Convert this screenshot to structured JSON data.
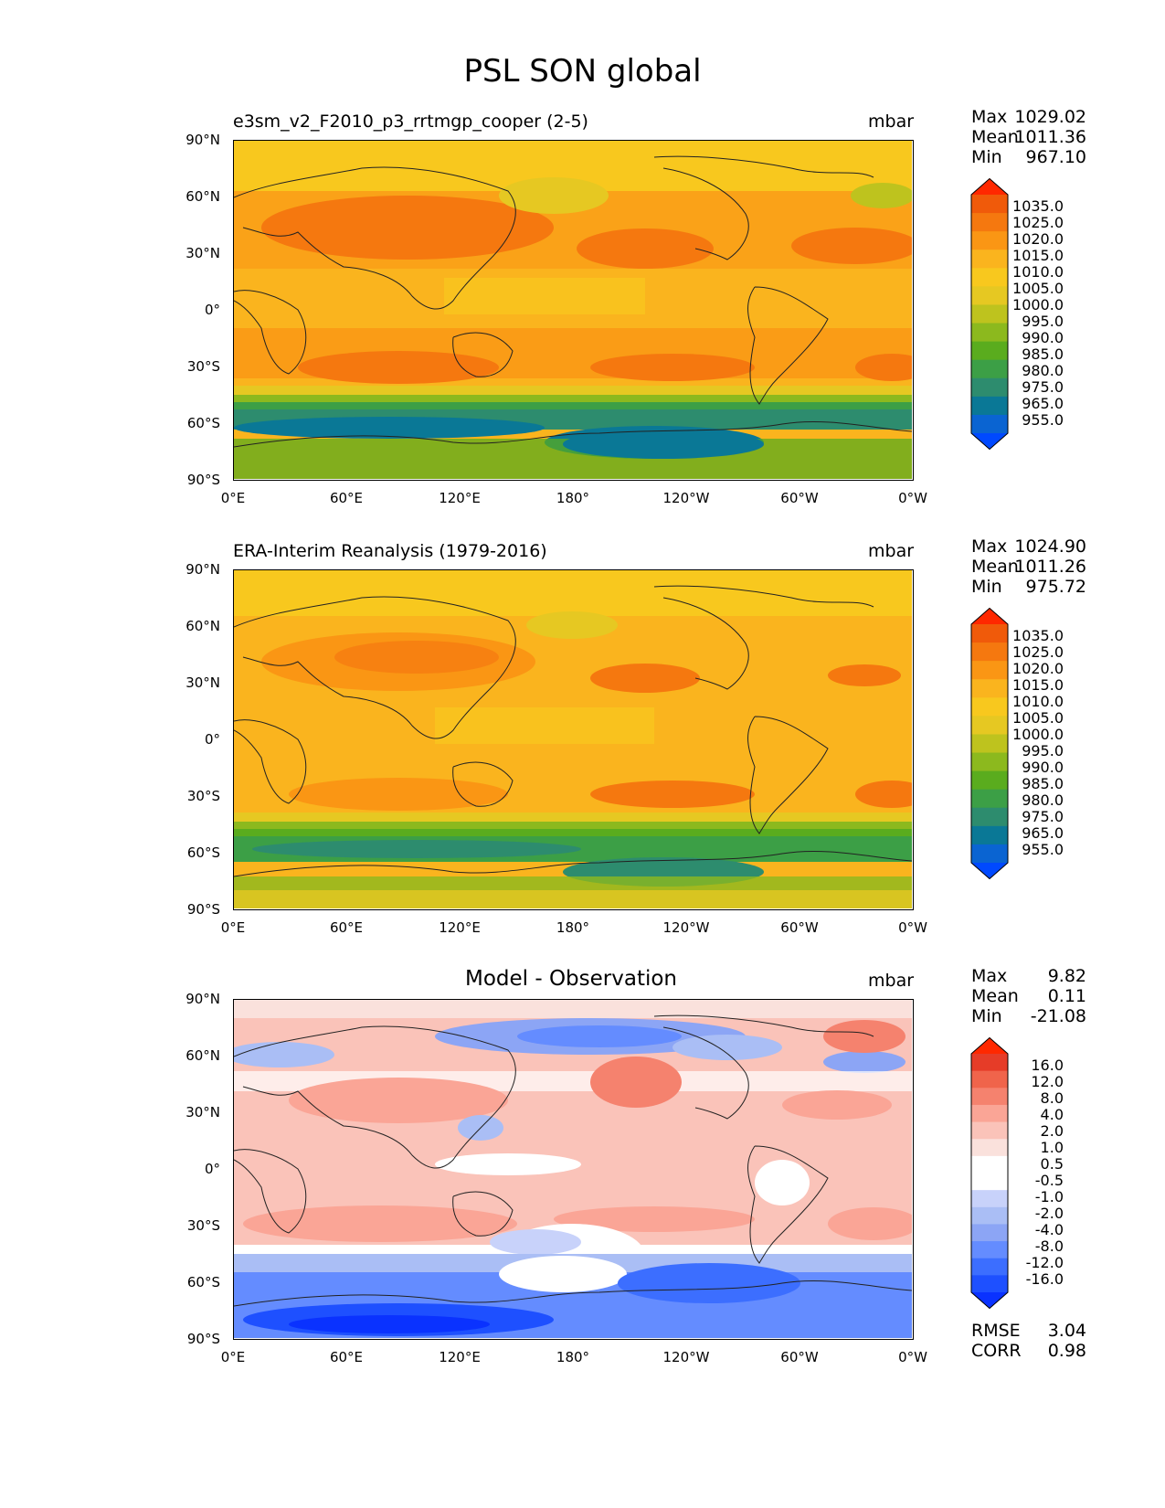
{
  "figure": {
    "title": "PSL SON global"
  },
  "colors": {
    "abs_levels": [
      "#0049ff",
      "#0a64d2",
      "#0a7896",
      "#2d8c6e",
      "#3c9f46",
      "#5aac1e",
      "#8cb91e",
      "#bec31e",
      "#e6c822",
      "#f8c81e",
      "#fab41e",
      "#fa9614",
      "#f5780f",
      "#f05a0a",
      "#ff2800"
    ],
    "diff_levels": [
      "#0a32ff",
      "#1e50ff",
      "#3c6eff",
      "#648cff",
      "#8ca5f5",
      "#aabef5",
      "#c8d2fa",
      "#ffffff",
      "#ffffff",
      "#fae1dc",
      "#fac3b9",
      "#faa596",
      "#f5826e",
      "#f0644b",
      "#e63c28",
      "#ff2800"
    ],
    "background": "#ffffff"
  },
  "chart_data": [
    {
      "type": "heatmap",
      "title": "e3sm_v2_F2010_p3_rrtmgp_cooper (2-5)",
      "units": "mbar",
      "stats": {
        "max_label": "Max",
        "max": "1029.02",
        "mean_label": "Mean",
        "mean": "1011.36",
        "min_label": "Min",
        "min": "967.10"
      },
      "colorbar_levels": [
        "1035.0",
        "1025.0",
        "1020.0",
        "1015.0",
        "1010.0",
        "1005.0",
        "1000.0",
        "995.0",
        "990.0",
        "985.0",
        "980.0",
        "975.0",
        "965.0",
        "955.0"
      ],
      "x_ticks": [
        "0°E",
        "60°E",
        "120°E",
        "180°",
        "120°W",
        "60°W",
        "0°W"
      ],
      "y_ticks": [
        "90°N",
        "60°N",
        "30°N",
        "0°",
        "30°S",
        "60°S",
        "90°S"
      ],
      "xlim": [
        0,
        360
      ],
      "ylim": [
        -90,
        90
      ]
    },
    {
      "type": "heatmap",
      "title": "ERA-Interim Reanalysis (1979-2016)",
      "units": "mbar",
      "stats": {
        "max_label": "Max",
        "max": "1024.90",
        "mean_label": "Mean",
        "mean": "1011.26",
        "min_label": "Min",
        "min": "975.72"
      },
      "colorbar_levels": [
        "1035.0",
        "1025.0",
        "1020.0",
        "1015.0",
        "1010.0",
        "1005.0",
        "1000.0",
        "995.0",
        "990.0",
        "985.0",
        "980.0",
        "975.0",
        "965.0",
        "955.0"
      ],
      "x_ticks": [
        "0°E",
        "60°E",
        "120°E",
        "180°",
        "120°W",
        "60°W",
        "0°W"
      ],
      "y_ticks": [
        "90°N",
        "60°N",
        "30°N",
        "0°",
        "30°S",
        "60°S",
        "90°S"
      ],
      "xlim": [
        0,
        360
      ],
      "ylim": [
        -90,
        90
      ]
    },
    {
      "type": "heatmap",
      "title": "Model - Observation",
      "units": "mbar",
      "stats": {
        "max_label": "Max",
        "max": "9.82",
        "mean_label": "Mean",
        "mean": "0.11",
        "min_label": "Min",
        "min": "-21.08"
      },
      "colorbar_levels": [
        "16.0",
        "12.0",
        "8.0",
        "4.0",
        "2.0",
        "1.0",
        "0.5",
        "-0.5",
        "-1.0",
        "-2.0",
        "-4.0",
        "-8.0",
        "-12.0",
        "-16.0"
      ],
      "x_ticks": [
        "0°E",
        "60°E",
        "120°E",
        "180°",
        "120°W",
        "60°W",
        "0°W"
      ],
      "y_ticks": [
        "90°N",
        "60°N",
        "30°N",
        "0°",
        "30°S",
        "60°S",
        "90°S"
      ],
      "xlim": [
        0,
        360
      ],
      "ylim": [
        -90,
        90
      ],
      "metrics": {
        "rmse_label": "RMSE",
        "rmse": "3.04",
        "corr_label": "CORR",
        "corr": "0.98"
      }
    }
  ]
}
